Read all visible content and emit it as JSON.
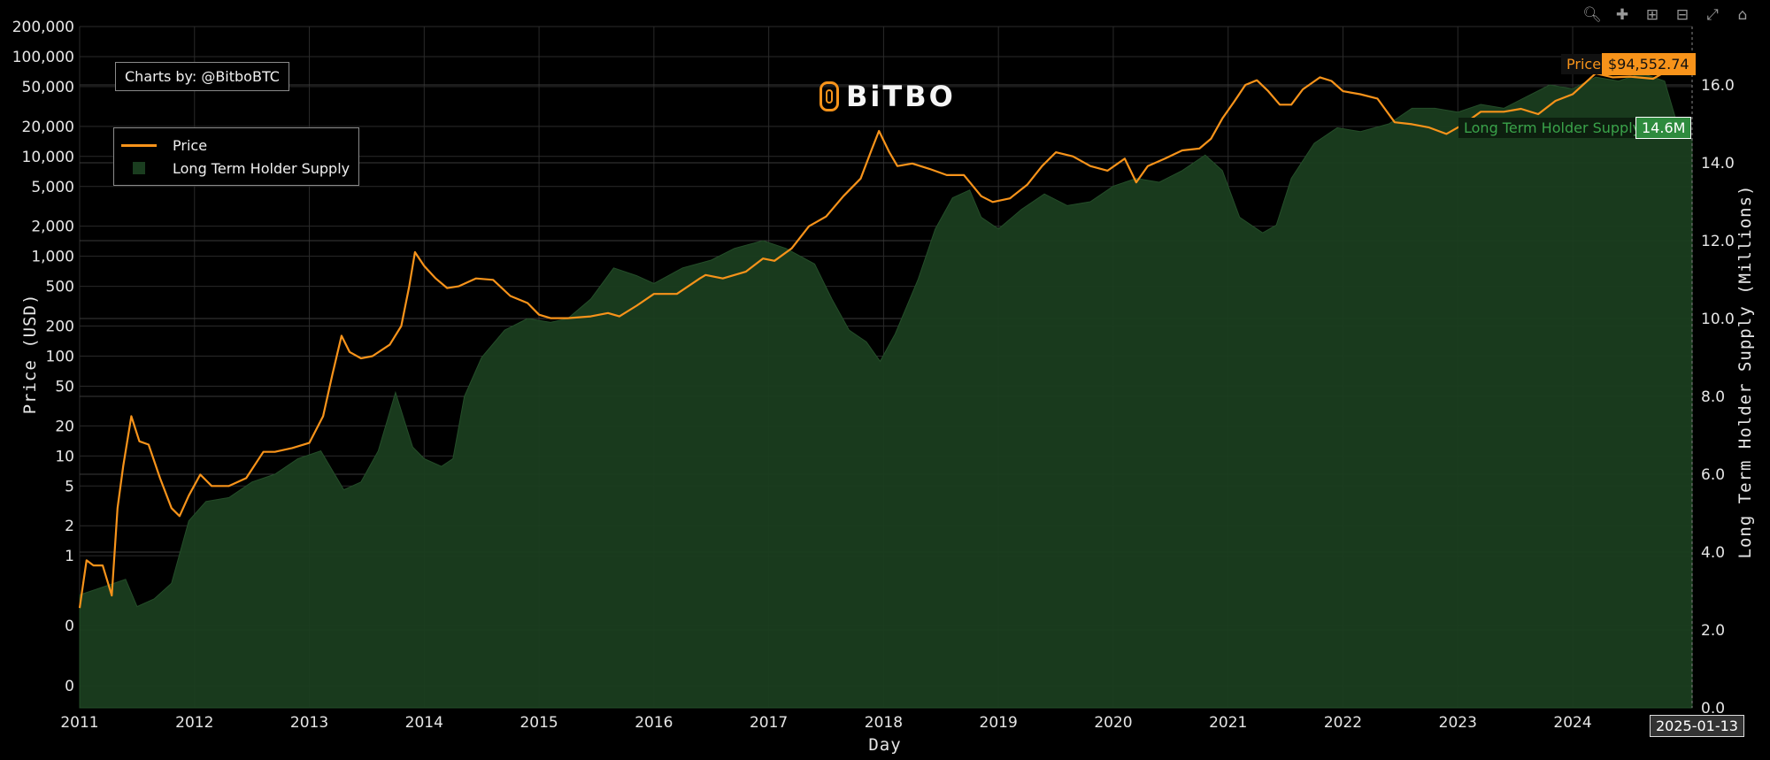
{
  "toolbar": {
    "icons": [
      "zoom-icon",
      "pan-icon",
      "zoom-in-icon",
      "zoom-out-icon",
      "autoscale-icon",
      "reset-home-icon"
    ]
  },
  "credit_text": "Charts by: @BitboBTC",
  "logo_text": "BiTBO",
  "legend": {
    "price": "Price",
    "supply": "Long Term Holder Supply"
  },
  "hover": {
    "price_name": "Price",
    "price_value": "$94,552.74",
    "supply_name": "Long Term Holder Supply",
    "supply_value": "14.6M",
    "date": "2025-01-13"
  },
  "colors": {
    "price": "#f7931a",
    "supply_fill": "#1a3d1f",
    "supply_tag": "#2e8b3e",
    "background": "#000000",
    "grid": "#2a2a2a"
  },
  "chart_data": {
    "type": "line",
    "xlabel": "Day",
    "ylabel": "Price (USD)",
    "y2label": "Long Term Holder Supply (Millions)",
    "y_scale": "log",
    "x_ticks": [
      "2011",
      "2012",
      "2013",
      "2014",
      "2015",
      "2016",
      "2017",
      "2018",
      "2019",
      "2020",
      "2021",
      "2022",
      "2023",
      "2024"
    ],
    "y_ticks": [
      {
        "label": "0",
        "value": 0.05
      },
      {
        "label": "0",
        "value": 0.2
      },
      {
        "label": "1",
        "value": 1
      },
      {
        "label": "2",
        "value": 2
      },
      {
        "label": "5",
        "value": 5
      },
      {
        "label": "10",
        "value": 10
      },
      {
        "label": "20",
        "value": 20
      },
      {
        "label": "50",
        "value": 50
      },
      {
        "label": "100",
        "value": 100
      },
      {
        "label": "200",
        "value": 200
      },
      {
        "label": "500",
        "value": 500
      },
      {
        "label": "1,000",
        "value": 1000
      },
      {
        "label": "2,000",
        "value": 2000
      },
      {
        "label": "5,000",
        "value": 5000
      },
      {
        "label": "10,000",
        "value": 10000
      },
      {
        "label": "20,000",
        "value": 20000
      },
      {
        "label": "50,000",
        "value": 50000
      },
      {
        "label": "100,000",
        "value": 100000
      },
      {
        "label": "200,000",
        "value": 200000
      }
    ],
    "y2_ticks": [
      "0.0",
      "2.0",
      "4.0",
      "6.0",
      "8.0",
      "10.0",
      "12.0",
      "14.0",
      "16.0"
    ],
    "y2_range": [
      0,
      17.5
    ],
    "x_range": [
      2011.0,
      2025.04
    ],
    "series": [
      {
        "name": "Price",
        "axis": "y",
        "points": [
          [
            2011.0,
            0.3
          ],
          [
            2011.06,
            0.9
          ],
          [
            2011.12,
            0.8
          ],
          [
            2011.2,
            0.8
          ],
          [
            2011.28,
            0.4
          ],
          [
            2011.33,
            3
          ],
          [
            2011.38,
            8
          ],
          [
            2011.45,
            25
          ],
          [
            2011.52,
            14
          ],
          [
            2011.6,
            13
          ],
          [
            2011.7,
            6
          ],
          [
            2011.8,
            3
          ],
          [
            2011.87,
            2.5
          ],
          [
            2011.95,
            4
          ],
          [
            2012.05,
            6.5
          ],
          [
            2012.15,
            5
          ],
          [
            2012.3,
            5
          ],
          [
            2012.45,
            6
          ],
          [
            2012.6,
            11
          ],
          [
            2012.7,
            11
          ],
          [
            2012.85,
            12
          ],
          [
            2013.0,
            13.5
          ],
          [
            2013.12,
            25
          ],
          [
            2013.2,
            65
          ],
          [
            2013.28,
            160
          ],
          [
            2013.35,
            110
          ],
          [
            2013.45,
            95
          ],
          [
            2013.55,
            100
          ],
          [
            2013.7,
            130
          ],
          [
            2013.8,
            200
          ],
          [
            2013.87,
            500
          ],
          [
            2013.92,
            1100
          ],
          [
            2014.0,
            800
          ],
          [
            2014.1,
            600
          ],
          [
            2014.2,
            480
          ],
          [
            2014.3,
            500
          ],
          [
            2014.45,
            600
          ],
          [
            2014.6,
            580
          ],
          [
            2014.75,
            400
          ],
          [
            2014.9,
            340
          ],
          [
            2015.0,
            260
          ],
          [
            2015.1,
            240
          ],
          [
            2015.25,
            240
          ],
          [
            2015.45,
            250
          ],
          [
            2015.6,
            270
          ],
          [
            2015.7,
            250
          ],
          [
            2015.85,
            320
          ],
          [
            2016.0,
            420
          ],
          [
            2016.2,
            420
          ],
          [
            2016.4,
            600
          ],
          [
            2016.45,
            650
          ],
          [
            2016.6,
            600
          ],
          [
            2016.8,
            700
          ],
          [
            2016.95,
            950
          ],
          [
            2017.05,
            900
          ],
          [
            2017.2,
            1200
          ],
          [
            2017.35,
            2000
          ],
          [
            2017.5,
            2500
          ],
          [
            2017.65,
            4000
          ],
          [
            2017.8,
            6000
          ],
          [
            2017.9,
            12000
          ],
          [
            2017.96,
            18000
          ],
          [
            2018.05,
            11000
          ],
          [
            2018.12,
            8000
          ],
          [
            2018.25,
            8500
          ],
          [
            2018.4,
            7500
          ],
          [
            2018.55,
            6500
          ],
          [
            2018.7,
            6500
          ],
          [
            2018.85,
            4000
          ],
          [
            2018.95,
            3500
          ],
          [
            2019.1,
            3800
          ],
          [
            2019.25,
            5200
          ],
          [
            2019.38,
            8000
          ],
          [
            2019.5,
            11000
          ],
          [
            2019.65,
            10000
          ],
          [
            2019.8,
            8000
          ],
          [
            2019.95,
            7200
          ],
          [
            2020.1,
            9500
          ],
          [
            2020.2,
            5500
          ],
          [
            2020.3,
            8000
          ],
          [
            2020.45,
            9500
          ],
          [
            2020.6,
            11500
          ],
          [
            2020.75,
            12000
          ],
          [
            2020.85,
            15000
          ],
          [
            2020.95,
            24000
          ],
          [
            2021.05,
            35000
          ],
          [
            2021.15,
            52000
          ],
          [
            2021.25,
            58000
          ],
          [
            2021.35,
            45000
          ],
          [
            2021.45,
            33000
          ],
          [
            2021.55,
            33000
          ],
          [
            2021.65,
            47000
          ],
          [
            2021.8,
            62000
          ],
          [
            2021.9,
            57000
          ],
          [
            2022.0,
            45000
          ],
          [
            2022.15,
            42000
          ],
          [
            2022.3,
            38000
          ],
          [
            2022.45,
            22000
          ],
          [
            2022.6,
            21000
          ],
          [
            2022.75,
            19500
          ],
          [
            2022.9,
            16800
          ],
          [
            2023.05,
            21000
          ],
          [
            2023.2,
            28000
          ],
          [
            2023.4,
            28000
          ],
          [
            2023.55,
            30000
          ],
          [
            2023.7,
            26500
          ],
          [
            2023.85,
            36000
          ],
          [
            2024.0,
            42000
          ],
          [
            2024.2,
            68000
          ],
          [
            2024.35,
            62000
          ],
          [
            2024.5,
            63000
          ],
          [
            2024.7,
            60000
          ],
          [
            2024.85,
            75000
          ],
          [
            2024.95,
            98000
          ],
          [
            2025.04,
            94552.74
          ]
        ]
      },
      {
        "name": "Long Term Holder Supply",
        "axis": "y2",
        "points": [
          [
            2011.0,
            2.9
          ],
          [
            2011.2,
            3.1
          ],
          [
            2011.4,
            3.3
          ],
          [
            2011.5,
            2.6
          ],
          [
            2011.65,
            2.8
          ],
          [
            2011.8,
            3.2
          ],
          [
            2011.95,
            4.8
          ],
          [
            2012.1,
            5.3
          ],
          [
            2012.3,
            5.4
          ],
          [
            2012.5,
            5.8
          ],
          [
            2012.7,
            6.0
          ],
          [
            2012.9,
            6.4
          ],
          [
            2013.1,
            6.6
          ],
          [
            2013.3,
            5.6
          ],
          [
            2013.45,
            5.8
          ],
          [
            2013.6,
            6.6
          ],
          [
            2013.75,
            8.1
          ],
          [
            2013.9,
            6.7
          ],
          [
            2014.0,
            6.4
          ],
          [
            2014.15,
            6.2
          ],
          [
            2014.25,
            6.4
          ],
          [
            2014.35,
            8.0
          ],
          [
            2014.5,
            9.0
          ],
          [
            2014.7,
            9.7
          ],
          [
            2014.9,
            10.0
          ],
          [
            2015.1,
            9.9
          ],
          [
            2015.25,
            10.0
          ],
          [
            2015.45,
            10.5
          ],
          [
            2015.65,
            11.3
          ],
          [
            2015.85,
            11.1
          ],
          [
            2016.0,
            10.9
          ],
          [
            2016.25,
            11.3
          ],
          [
            2016.5,
            11.5
          ],
          [
            2016.7,
            11.8
          ],
          [
            2016.95,
            12.0
          ],
          [
            2017.15,
            11.8
          ],
          [
            2017.4,
            11.4
          ],
          [
            2017.55,
            10.5
          ],
          [
            2017.7,
            9.7
          ],
          [
            2017.85,
            9.4
          ],
          [
            2017.97,
            8.9
          ],
          [
            2018.1,
            9.6
          ],
          [
            2018.3,
            11.0
          ],
          [
            2018.45,
            12.3
          ],
          [
            2018.6,
            13.1
          ],
          [
            2018.75,
            13.3
          ],
          [
            2018.85,
            12.6
          ],
          [
            2019.0,
            12.3
          ],
          [
            2019.2,
            12.8
          ],
          [
            2019.4,
            13.2
          ],
          [
            2019.6,
            12.9
          ],
          [
            2019.8,
            13.0
          ],
          [
            2020.0,
            13.4
          ],
          [
            2020.2,
            13.6
          ],
          [
            2020.4,
            13.5
          ],
          [
            2020.6,
            13.8
          ],
          [
            2020.8,
            14.2
          ],
          [
            2020.95,
            13.8
          ],
          [
            2021.1,
            12.6
          ],
          [
            2021.3,
            12.2
          ],
          [
            2021.42,
            12.4
          ],
          [
            2021.55,
            13.6
          ],
          [
            2021.75,
            14.5
          ],
          [
            2021.95,
            14.9
          ],
          [
            2022.15,
            14.8
          ],
          [
            2022.4,
            15.0
          ],
          [
            2022.6,
            15.4
          ],
          [
            2022.8,
            15.4
          ],
          [
            2023.0,
            15.3
          ],
          [
            2023.2,
            15.5
          ],
          [
            2023.4,
            15.4
          ],
          [
            2023.6,
            15.7
          ],
          [
            2023.8,
            16.0
          ],
          [
            2024.0,
            15.9
          ],
          [
            2024.2,
            16.2
          ],
          [
            2024.4,
            16.1
          ],
          [
            2024.6,
            16.3
          ],
          [
            2024.8,
            16.1
          ],
          [
            2024.92,
            14.9
          ],
          [
            2025.04,
            14.6
          ]
        ]
      }
    ]
  }
}
